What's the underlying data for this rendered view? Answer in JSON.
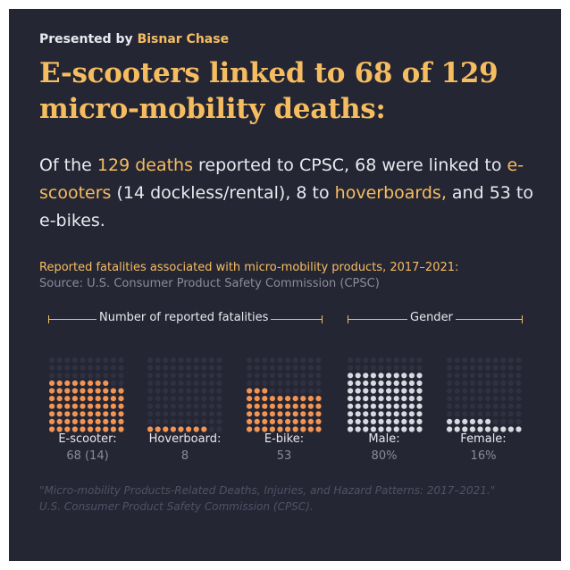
{
  "header": {
    "presented_prefix": "Presented by",
    "brand": "Bisnar Chase",
    "headline": "E-scooters linked to 68 of 129 micro-mobility deaths:"
  },
  "summary": {
    "p1": "Of the ",
    "h1": "129 deaths",
    "p2": " reported to CPSC, 68 were linked to ",
    "h2": "e-scooters",
    "p3": " (14 dockless/rental), 8 to ",
    "h3": "hoverboards,",
    "p4": " and 53 to e-bikes."
  },
  "chart_data": {
    "type": "waffle",
    "title": "Reported fatalities associated with micro-mobility products, 2017–2021:",
    "source": "Source: U.S. Consumer Product Safety Commission (CPSC)",
    "groups": [
      {
        "label": "Number of reported fatalities",
        "categories": [
          {
            "name": "E-scooter:",
            "value": 68,
            "sub_value": 14,
            "display": "68 (14)",
            "color": "#f29452"
          },
          {
            "name": "Hoverboard:",
            "value": 8,
            "display": "8",
            "color": "#f29452"
          },
          {
            "name": "E-bike:",
            "value": 53,
            "display": "53",
            "color": "#f29452"
          }
        ]
      },
      {
        "label": "Gender",
        "categories": [
          {
            "name": "Male:",
            "value": 80,
            "display": "80%",
            "color": "#d9d9e2"
          },
          {
            "name": "Female:",
            "value": 16,
            "display": "16%",
            "color": "#d9d9e2"
          }
        ]
      }
    ],
    "grid": {
      "cols": 10,
      "rows": 10
    },
    "empty_color": "#2f3142"
  },
  "citation": {
    "line1": "\"Micro-mobility Products-Related Deaths, Injuries, and Hazard Patterns: 2017–2021.\"",
    "line2": "U.S. Consumer Product Safety Commission (CPSC)."
  },
  "colors": {
    "background": "#252634",
    "accent": "#f6bd60",
    "orange": "#f29452",
    "text": "#e9e9ef",
    "muted": "#8a8c9c"
  }
}
